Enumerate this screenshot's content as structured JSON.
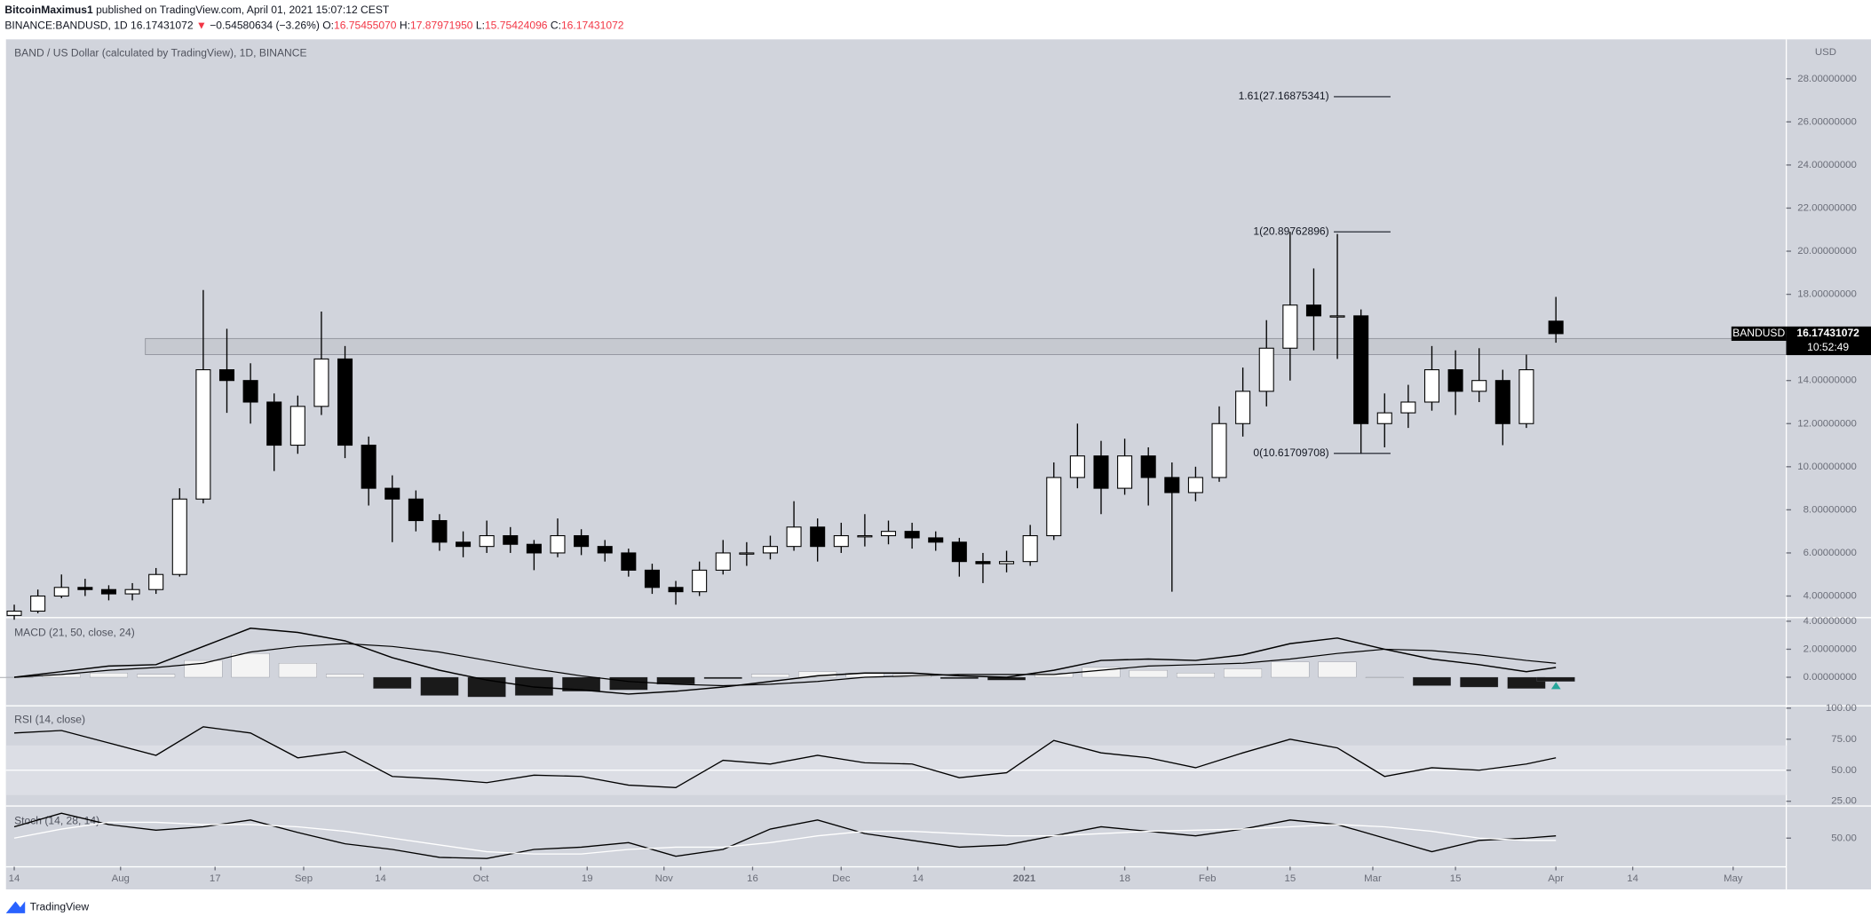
{
  "header": {
    "author": "BitcoinMaximus1",
    "published": "published on TradingView.com, April 01, 2021 15:07:12 CEST",
    "symbol": "BINANCE:BANDUSD, 1D",
    "last": "16.17431072",
    "arrow": "▼",
    "change": "−0.54580634 (−3.26%)",
    "ohlc": [
      {
        "label": "O:",
        "value": "16.75455070"
      },
      {
        "label": "H:",
        "value": "17.87971950"
      },
      {
        "label": "L:",
        "value": "15.75424096"
      },
      {
        "label": "C:",
        "value": "16.17431072"
      }
    ]
  },
  "footer": {
    "brand": "TradingView"
  },
  "chart_data": [
    {
      "type": "candlestick",
      "title": "BAND / US Dollar (calculated by TradingView), 1D, BINANCE",
      "y_axis_label": "USD",
      "x": [
        0,
        4,
        8,
        12,
        16,
        20,
        24,
        28,
        32,
        36,
        40,
        44,
        48,
        52,
        56,
        60,
        64,
        68,
        72,
        76,
        80,
        84,
        88,
        92,
        96,
        100,
        104,
        108,
        112,
        116,
        120,
        124,
        128,
        132,
        136,
        140,
        144,
        148,
        152,
        156,
        160,
        164,
        168,
        172,
        176,
        180,
        184,
        188,
        192,
        196,
        200,
        204,
        208,
        212,
        216,
        220,
        224,
        228,
        232,
        236,
        240,
        244,
        248,
        252,
        256,
        261
      ],
      "open": [
        3.1,
        3.3,
        4.0,
        4.4,
        4.3,
        4.1,
        4.3,
        5.0,
        8.5,
        14.5,
        14.0,
        13.0,
        11.0,
        12.8,
        15.0,
        11.0,
        9.0,
        8.5,
        7.5,
        6.5,
        6.3,
        6.8,
        6.4,
        6.0,
        6.8,
        6.3,
        6.0,
        5.2,
        4.4,
        4.2,
        5.2,
        6.0,
        6.0,
        6.3,
        7.2,
        6.3,
        6.8,
        6.8,
        7.0,
        6.7,
        6.5,
        5.6,
        5.5,
        5.6,
        6.8,
        9.5,
        10.5,
        9.0,
        10.5,
        9.5,
        8.8,
        9.5,
        12.0,
        13.5,
        15.5,
        17.5,
        17.0,
        17.0,
        12.0,
        12.5,
        13.0,
        14.5,
        13.5,
        14.0,
        12.0,
        16.7545507
      ],
      "high": [
        3.6,
        4.3,
        5.0,
        4.8,
        4.5,
        4.6,
        5.3,
        9.0,
        18.2,
        16.4,
        14.8,
        13.4,
        13.3,
        17.2,
        15.6,
        11.4,
        9.6,
        8.9,
        7.8,
        7.0,
        7.5,
        7.2,
        6.6,
        7.6,
        7.1,
        6.6,
        6.2,
        5.5,
        4.7,
        5.6,
        6.6,
        6.5,
        6.8,
        8.4,
        7.6,
        7.4,
        7.8,
        7.5,
        7.4,
        7.0,
        6.7,
        6.0,
        6.1,
        7.3,
        10.2,
        12.0,
        11.2,
        11.3,
        10.9,
        10.2,
        10.0,
        12.8,
        14.6,
        16.8,
        20.9,
        19.2,
        20.8,
        17.3,
        13.4,
        13.8,
        15.6,
        15.4,
        15.5,
        14.5,
        15.2,
        17.8797195
      ],
      "low": [
        2.9,
        3.2,
        3.9,
        4.0,
        3.8,
        3.8,
        4.1,
        4.9,
        8.3,
        12.5,
        12.0,
        9.8,
        10.6,
        12.4,
        10.4,
        8.2,
        6.5,
        7.0,
        6.1,
        5.8,
        6.0,
        6.0,
        5.2,
        5.8,
        5.9,
        5.6,
        4.9,
        4.1,
        3.6,
        4.0,
        5.0,
        5.4,
        5.7,
        6.1,
        5.6,
        6.0,
        6.3,
        6.4,
        6.2,
        6.1,
        4.9,
        4.6,
        5.1,
        5.4,
        6.6,
        9.0,
        7.8,
        8.7,
        8.2,
        4.2,
        8.4,
        9.3,
        11.4,
        12.8,
        14.0,
        15.4,
        15.0,
        10.6,
        10.9,
        11.8,
        12.6,
        12.4,
        13.0,
        11.0,
        11.8,
        15.75424096
      ],
      "close": [
        3.3,
        4.0,
        4.4,
        4.3,
        4.1,
        4.3,
        5.0,
        8.5,
        14.5,
        14.0,
        13.0,
        11.0,
        12.8,
        15.0,
        11.0,
        9.0,
        8.5,
        7.5,
        6.5,
        6.3,
        6.8,
        6.4,
        6.0,
        6.8,
        6.3,
        6.0,
        5.2,
        4.4,
        4.2,
        5.2,
        6.0,
        6.0,
        6.3,
        7.2,
        6.3,
        6.8,
        6.8,
        7.0,
        6.7,
        6.5,
        5.6,
        5.5,
        5.6,
        6.8,
        9.5,
        10.5,
        9.0,
        10.5,
        9.5,
        8.8,
        9.5,
        12.0,
        13.5,
        15.5,
        17.5,
        17.0,
        17.0,
        12.0,
        12.5,
        13.0,
        14.5,
        13.5,
        14.0,
        12.0,
        14.5,
        16.17431072
      ],
      "xlim": [
        -1.4,
        300
      ],
      "ylim": [
        3.0,
        29.83
      ],
      "yticks": [
        {
          "value": 4,
          "label": "4.00000000"
        },
        {
          "value": 6,
          "label": "6.00000000"
        },
        {
          "value": 8,
          "label": "8.00000000"
        },
        {
          "value": 10,
          "label": "10.00000000"
        },
        {
          "value": 12,
          "label": "12.00000000"
        },
        {
          "value": 14,
          "label": "14.00000000"
        },
        {
          "value": 16,
          "label": "16.00000000"
        },
        {
          "value": 18,
          "label": "18.00000000"
        },
        {
          "value": 20,
          "label": "20.00000000"
        },
        {
          "value": 22,
          "label": "22.00000000"
        },
        {
          "value": 24,
          "label": "24.00000000"
        },
        {
          "value": 26,
          "label": "26.00000000"
        },
        {
          "value": 28,
          "label": "28.00000000"
        }
      ],
      "zone": {
        "x": [
          22.2,
          300
        ],
        "y": [
          15.2,
          15.95
        ]
      },
      "fib": {
        "x": [
          223.4,
          233
        ],
        "levels": [
          {
            "value": 27.16875341,
            "label": "1.61(27.16875341)"
          },
          {
            "value": 20.89762896,
            "label": "1(20.89762896)"
          },
          {
            "value": 10.61709708,
            "label": "0(10.61709708)"
          }
        ]
      },
      "last_price": {
        "symbol": "BANDUSD",
        "value": 16.17431072,
        "countdown": "10:52:49"
      },
      "colors": {
        "up": "#ffffff",
        "down": "#000000",
        "wick": "#000000",
        "zone": "#c3c6cd"
      }
    },
    {
      "type": "macd",
      "title": "MACD (21, 50, close, 24)",
      "x": [
        0,
        8,
        16,
        24,
        32,
        40,
        48,
        56,
        64,
        72,
        80,
        88,
        96,
        104,
        112,
        120,
        128,
        136,
        144,
        152,
        160,
        168,
        176,
        184,
        192,
        200,
        208,
        216,
        224,
        232,
        240,
        248,
        256,
        261
      ],
      "macd": [
        0.0,
        0.4,
        0.8,
        0.9,
        2.2,
        3.5,
        3.2,
        2.6,
        1.4,
        0.5,
        -0.2,
        -0.7,
        -0.9,
        -1.2,
        -1.0,
        -0.7,
        -0.3,
        0.1,
        0.3,
        0.3,
        0.1,
        0.0,
        0.5,
        1.2,
        1.3,
        1.2,
        1.6,
        2.4,
        2.8,
        2.0,
        1.3,
        0.9,
        0.4,
        0.7
      ],
      "signal": [
        0.0,
        0.2,
        0.5,
        0.7,
        1.0,
        1.8,
        2.2,
        2.4,
        2.2,
        1.8,
        1.2,
        0.6,
        0.1,
        -0.3,
        -0.5,
        -0.6,
        -0.5,
        -0.3,
        0.0,
        0.1,
        0.2,
        0.2,
        0.2,
        0.5,
        0.8,
        0.9,
        1.0,
        1.3,
        1.7,
        2.0,
        1.9,
        1.6,
        1.2,
        1.0
      ],
      "histogram": [
        0.0,
        0.2,
        0.3,
        0.2,
        1.2,
        1.7,
        1.0,
        0.2,
        -0.8,
        -1.3,
        -1.4,
        -1.3,
        -1.0,
        -0.9,
        -0.5,
        -0.1,
        0.2,
        0.4,
        0.3,
        0.2,
        -0.1,
        -0.2,
        0.3,
        0.7,
        0.5,
        0.3,
        0.6,
        1.1,
        1.1,
        0.0,
        -0.6,
        -0.7,
        -0.8,
        -0.3
      ],
      "xlim": [
        -1.4,
        300
      ],
      "ylim": [
        -2.04,
        4.26
      ],
      "yticks": [
        {
          "value": 0,
          "label": "0.00000000"
        },
        {
          "value": 2,
          "label": "2.00000000"
        },
        {
          "value": 4,
          "label": "4.00000000"
        }
      ],
      "colors": {
        "macd": "#000000",
        "signal": "#000000",
        "hist_positive": "#f4f4f4",
        "hist_negative": "#1a1a1a"
      }
    },
    {
      "type": "line",
      "title": "RSI (14, close)",
      "x": [
        0,
        8,
        16,
        24,
        32,
        40,
        48,
        56,
        64,
        72,
        80,
        88,
        96,
        104,
        112,
        120,
        128,
        136,
        144,
        152,
        160,
        168,
        176,
        184,
        192,
        200,
        208,
        216,
        224,
        232,
        240,
        248,
        256,
        261
      ],
      "series": [
        {
          "color": "#000000",
          "values": [
            80,
            82,
            72,
            62,
            85,
            80,
            60,
            65,
            45,
            43,
            40,
            46,
            45,
            38,
            36,
            58,
            55,
            62,
            56,
            55,
            44,
            48,
            74,
            64,
            60,
            52,
            64,
            75,
            68,
            45,
            52,
            50,
            55,
            60
          ]
        }
      ],
      "band": [
        30,
        70
      ],
      "midline": 50,
      "xlim": [
        -1.4,
        300
      ],
      "ylim": [
        21.2,
        101.9
      ],
      "yticks": [
        {
          "value": 25,
          "label": "25.00"
        },
        {
          "value": 50,
          "label": "50.00"
        },
        {
          "value": 75,
          "label": "75.00"
        },
        {
          "value": 100,
          "label": "100.00"
        }
      ]
    },
    {
      "type": "line",
      "title": "Stoch (14, 28, 14)",
      "x": [
        0,
        8,
        16,
        24,
        32,
        40,
        48,
        56,
        64,
        72,
        80,
        88,
        96,
        104,
        112,
        120,
        128,
        136,
        144,
        152,
        160,
        168,
        176,
        184,
        192,
        200,
        208,
        216,
        224,
        232,
        240,
        248,
        256,
        261
      ],
      "series": [
        {
          "color": "#000000",
          "values": [
            60,
            72,
            62,
            57,
            60,
            66,
            55,
            45,
            40,
            33,
            32,
            40,
            42,
            46,
            34,
            40,
            58,
            66,
            54,
            48,
            42,
            44,
            52,
            60,
            56,
            52,
            58,
            66,
            62,
            50,
            38,
            48,
            50,
            52
          ]
        },
        {
          "color": "#ffffff",
          "values": [
            50,
            58,
            64,
            64,
            62,
            62,
            60,
            56,
            50,
            44,
            38,
            36,
            36,
            40,
            42,
            42,
            46,
            52,
            56,
            56,
            54,
            52,
            52,
            54,
            56,
            57,
            58,
            60,
            62,
            60,
            56,
            50,
            48,
            48
          ]
        }
      ],
      "xlim": [
        -1.4,
        300
      ],
      "ylim": [
        24.7,
        78.4
      ],
      "yticks": [
        {
          "value": 50,
          "label": "50.00"
        }
      ],
      "xticks": [
        {
          "value": 0,
          "label": "14"
        },
        {
          "value": 18,
          "label": "Aug"
        },
        {
          "value": 34,
          "label": "17"
        },
        {
          "value": 49,
          "label": "Sep"
        },
        {
          "value": 62,
          "label": "14"
        },
        {
          "value": 79,
          "label": "Oct"
        },
        {
          "value": 97,
          "label": "19"
        },
        {
          "value": 110,
          "label": "Nov"
        },
        {
          "value": 125,
          "label": "16"
        },
        {
          "value": 140,
          "label": "Dec"
        },
        {
          "value": 153,
          "label": "14"
        },
        {
          "value": 171,
          "label": "2021"
        },
        {
          "value": 188,
          "label": "18"
        },
        {
          "value": 202,
          "label": "Feb"
        },
        {
          "value": 216,
          "label": "15"
        },
        {
          "value": 230,
          "label": "Mar"
        },
        {
          "value": 244,
          "label": "15"
        },
        {
          "value": 261,
          "label": "Apr"
        },
        {
          "value": 274,
          "label": "14"
        },
        {
          "value": 291,
          "label": "May"
        }
      ]
    }
  ]
}
